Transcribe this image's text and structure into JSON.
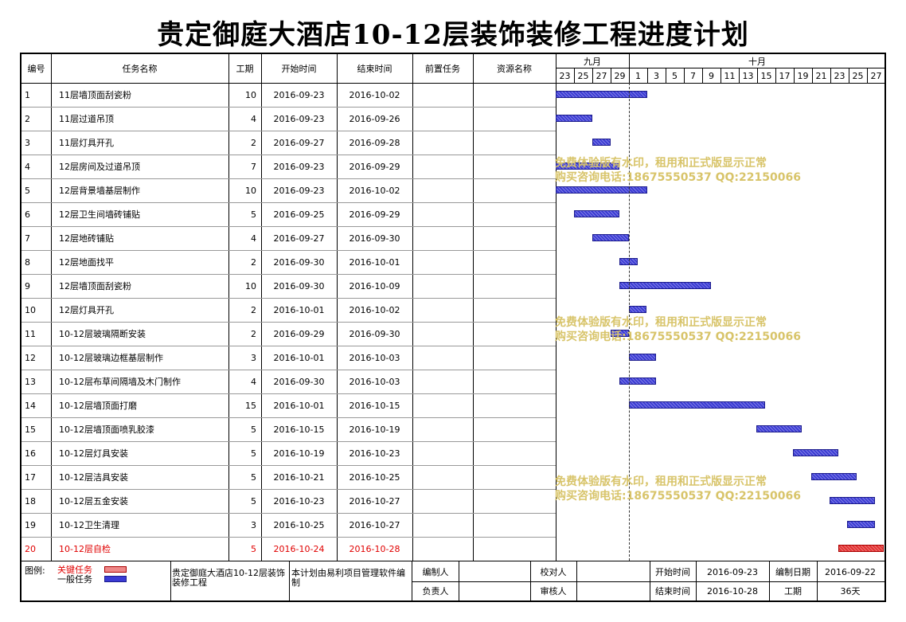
{
  "title": "贵定御庭大酒店10-12层装饰装修工程进度计划",
  "columns": {
    "id": "编号",
    "name": "任务名称",
    "duration": "工期",
    "start": "开始时间",
    "end": "结束时间",
    "predecessor": "前置任务",
    "resource": "资源名称"
  },
  "timeline": {
    "months": [
      "九月",
      "十月"
    ],
    "days": [
      "23",
      "25",
      "27",
      "29",
      "1",
      "3",
      "5",
      "7",
      "9",
      "11",
      "13",
      "15",
      "17",
      "19",
      "21",
      "23",
      "25",
      "27"
    ],
    "start_date": "2016-09-23",
    "today_line": "2016-10-01"
  },
  "tasks": [
    {
      "id": "1",
      "name": "11层墙顶面刮瓷粉",
      "duration": "10",
      "start": "2016-09-23",
      "end": "2016-10-02",
      "predecessor": "",
      "resource": "",
      "critical": false
    },
    {
      "id": "2",
      "name": "11层过道吊顶",
      "duration": "4",
      "start": "2016-09-23",
      "end": "2016-09-26",
      "predecessor": "",
      "resource": "",
      "critical": false
    },
    {
      "id": "3",
      "name": "11层灯具开孔",
      "duration": "2",
      "start": "2016-09-27",
      "end": "2016-09-28",
      "predecessor": "",
      "resource": "",
      "critical": false
    },
    {
      "id": "4",
      "name": "12层房间及过道吊顶",
      "duration": "7",
      "start": "2016-09-23",
      "end": "2016-09-29",
      "predecessor": "",
      "resource": "",
      "critical": false
    },
    {
      "id": "5",
      "name": "12层背景墙基层制作",
      "duration": "10",
      "start": "2016-09-23",
      "end": "2016-10-02",
      "predecessor": "",
      "resource": "",
      "critical": false
    },
    {
      "id": "6",
      "name": "12层卫生间墙砖铺贴",
      "duration": "5",
      "start": "2016-09-25",
      "end": "2016-09-29",
      "predecessor": "",
      "resource": "",
      "critical": false
    },
    {
      "id": "7",
      "name": "12层地砖铺贴",
      "duration": "4",
      "start": "2016-09-27",
      "end": "2016-09-30",
      "predecessor": "",
      "resource": "",
      "critical": false
    },
    {
      "id": "8",
      "name": "12层地面找平",
      "duration": "2",
      "start": "2016-09-30",
      "end": "2016-10-01",
      "predecessor": "",
      "resource": "",
      "critical": false
    },
    {
      "id": "9",
      "name": "12层墙顶面刮瓷粉",
      "duration": "10",
      "start": "2016-09-30",
      "end": "2016-10-09",
      "predecessor": "",
      "resource": "",
      "critical": false
    },
    {
      "id": "10",
      "name": "12层灯具开孔",
      "duration": "2",
      "start": "2016-10-01",
      "end": "2016-10-02",
      "predecessor": "",
      "resource": "",
      "critical": false
    },
    {
      "id": "11",
      "name": "10-12层玻璃隔断安装",
      "duration": "2",
      "start": "2016-09-29",
      "end": "2016-09-30",
      "predecessor": "",
      "resource": "",
      "critical": false
    },
    {
      "id": "12",
      "name": "10-12层玻璃边框基层制作",
      "duration": "3",
      "start": "2016-10-01",
      "end": "2016-10-03",
      "predecessor": "",
      "resource": "",
      "critical": false
    },
    {
      "id": "13",
      "name": "10-12层布草间隔墙及木门制作",
      "duration": "4",
      "start": "2016-09-30",
      "end": "2016-10-03",
      "predecessor": "",
      "resource": "",
      "critical": false
    },
    {
      "id": "14",
      "name": "10-12层墙顶面打磨",
      "duration": "15",
      "start": "2016-10-01",
      "end": "2016-10-15",
      "predecessor": "",
      "resource": "",
      "critical": false
    },
    {
      "id": "15",
      "name": "10-12层墙顶面喷乳胶漆",
      "duration": "5",
      "start": "2016-10-15",
      "end": "2016-10-19",
      "predecessor": "",
      "resource": "",
      "critical": false
    },
    {
      "id": "16",
      "name": "10-12层灯具安装",
      "duration": "5",
      "start": "2016-10-19",
      "end": "2016-10-23",
      "predecessor": "",
      "resource": "",
      "critical": false
    },
    {
      "id": "17",
      "name": "10-12层洁具安装",
      "duration": "5",
      "start": "2016-10-21",
      "end": "2016-10-25",
      "predecessor": "",
      "resource": "",
      "critical": false
    },
    {
      "id": "18",
      "name": "10-12层五金安装",
      "duration": "5",
      "start": "2016-10-23",
      "end": "2016-10-27",
      "predecessor": "",
      "resource": "",
      "critical": false
    },
    {
      "id": "19",
      "name": "10-12卫生清理",
      "duration": "3",
      "start": "2016-10-25",
      "end": "2016-10-27",
      "predecessor": "",
      "resource": "",
      "critical": false
    },
    {
      "id": "20",
      "name": "10-12层自检",
      "duration": "5",
      "start": "2016-10-24",
      "end": "2016-10-28",
      "predecessor": "",
      "resource": "",
      "critical": true
    }
  ],
  "watermark": {
    "line1": "免费体验版有水印，租用和正式版显示正常",
    "line2": "购买咨询电话:18675550537 QQ:22150066"
  },
  "footer": {
    "legend_label": "图例:",
    "legend_critical": "关键任务",
    "legend_normal": "一般任务",
    "project_name": "贵定御庭大酒店10-12层装饰装修工程",
    "software_note": "本计划由易利项目管理软件编制",
    "compiler_label": "编制人",
    "compiler_value": "",
    "owner_label": "负责人",
    "owner_value": "",
    "checker_label": "校对人",
    "checker_value": "",
    "reviewer_label": "审核人",
    "reviewer_value": "",
    "start_label": "开始时间",
    "start_value": "2016-09-23",
    "end_label": "结束时间",
    "end_value": "2016-10-28",
    "made_date_label": "编制日期",
    "made_date_value": "2016-09-22",
    "duration_label": "工期",
    "duration_value": "36天"
  },
  "colors": {
    "normal_bar": "#3b3bd4",
    "critical_bar": "#e23030",
    "critical_text": "#e00000",
    "watermark": "#d8c46a"
  }
}
